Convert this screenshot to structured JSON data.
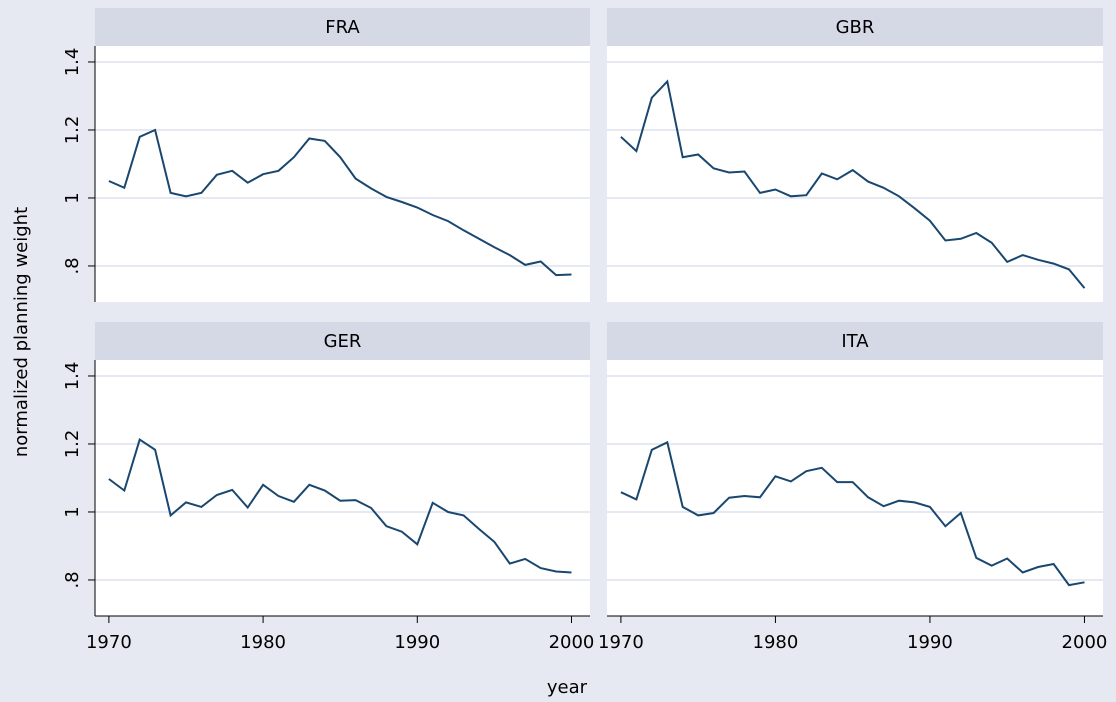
{
  "chart_data": [
    {
      "type": "line",
      "title": "FRA",
      "color": "#1a476f",
      "grid": true,
      "x": [
        1970,
        1971,
        1972,
        1973,
        1974,
        1975,
        1976,
        1977,
        1978,
        1979,
        1980,
        1981,
        1982,
        1983,
        1984,
        1985,
        1986,
        1987,
        1988,
        1989,
        1990,
        1991,
        1992,
        1993,
        1994,
        1995,
        1996,
        1997,
        1998,
        1999,
        2000
      ],
      "values": [
        1.05,
        1.03,
        1.18,
        1.2,
        1.015,
        1.005,
        1.015,
        1.068,
        1.08,
        1.045,
        1.07,
        1.08,
        1.12,
        1.175,
        1.168,
        1.12,
        1.057,
        1.028,
        1.003,
        0.988,
        0.972,
        0.95,
        0.932,
        0.905,
        0.88,
        0.855,
        0.832,
        0.803,
        0.813,
        0.773,
        0.775
      ],
      "xlim": [
        1969.1,
        2001.2
      ],
      "ylim": [
        0.694,
        1.447
      ],
      "yticks": [
        {
          "value": 0.8,
          "label": ".8"
        },
        1,
        1.2,
        1.4
      ]
    },
    {
      "type": "line",
      "title": "GBR",
      "color": "#1a476f",
      "grid": true,
      "x": [
        1970,
        1971,
        1972,
        1973,
        1974,
        1975,
        1976,
        1977,
        1978,
        1979,
        1980,
        1981,
        1982,
        1983,
        1984,
        1985,
        1986,
        1987,
        1988,
        1989,
        1990,
        1991,
        1992,
        1993,
        1994,
        1995,
        1996,
        1997,
        1998,
        1999,
        2000
      ],
      "values": [
        1.18,
        1.138,
        1.295,
        1.343,
        1.12,
        1.128,
        1.087,
        1.075,
        1.078,
        1.015,
        1.025,
        1.005,
        1.008,
        1.072,
        1.055,
        1.082,
        1.048,
        1.03,
        1.005,
        0.97,
        0.933,
        0.875,
        0.88,
        0.897,
        0.868,
        0.812,
        0.832,
        0.818,
        0.807,
        0.79,
        0.735
      ],
      "xlim": [
        1969.1,
        2001.2
      ],
      "ylim": [
        0.694,
        1.447
      ]
    },
    {
      "type": "line",
      "title": "GER",
      "color": "#1a476f",
      "grid": true,
      "x": [
        1970,
        1971,
        1972,
        1973,
        1974,
        1975,
        1976,
        1977,
        1978,
        1979,
        1980,
        1981,
        1982,
        1983,
        1984,
        1985,
        1986,
        1987,
        1988,
        1989,
        1990,
        1991,
        1992,
        1993,
        1994,
        1995,
        1996,
        1997,
        1998,
        1999,
        2000
      ],
      "values": [
        1.097,
        1.063,
        1.213,
        1.183,
        0.99,
        1.028,
        1.015,
        1.05,
        1.065,
        1.013,
        1.08,
        1.047,
        1.03,
        1.08,
        1.063,
        1.033,
        1.035,
        1.012,
        0.958,
        0.942,
        0.905,
        1.027,
        1.0,
        0.99,
        0.95,
        0.912,
        0.848,
        0.862,
        0.835,
        0.825,
        0.822
      ],
      "xlim": [
        1969.1,
        2001.2
      ],
      "ylim": [
        0.694,
        1.447
      ],
      "yticks": [
        {
          "value": 0.8,
          "label": ".8"
        },
        1,
        1.2,
        1.4
      ],
      "xticks": [
        1970,
        1980,
        1990,
        2000
      ]
    },
    {
      "type": "line",
      "title": "ITA",
      "color": "#1a476f",
      "grid": true,
      "x": [
        1970,
        1971,
        1972,
        1973,
        1974,
        1975,
        1976,
        1977,
        1978,
        1979,
        1980,
        1981,
        1982,
        1983,
        1984,
        1985,
        1986,
        1987,
        1988,
        1989,
        1990,
        1991,
        1992,
        1993,
        1994,
        1995,
        1996,
        1997,
        1998,
        1999,
        2000
      ],
      "values": [
        1.058,
        1.037,
        1.183,
        1.205,
        1.015,
        0.99,
        0.997,
        1.042,
        1.047,
        1.043,
        1.105,
        1.09,
        1.12,
        1.13,
        1.088,
        1.088,
        1.043,
        1.017,
        1.033,
        1.028,
        1.015,
        0.958,
        0.997,
        0.865,
        0.842,
        0.863,
        0.822,
        0.838,
        0.847,
        0.785,
        0.793
      ],
      "xlim": [
        1969.1,
        2001.2
      ],
      "ylim": [
        0.694,
        1.447
      ],
      "xticks": [
        1970,
        1980,
        1990,
        2000
      ]
    }
  ],
  "x_label": "year",
  "y_label": "normalized planning weight"
}
